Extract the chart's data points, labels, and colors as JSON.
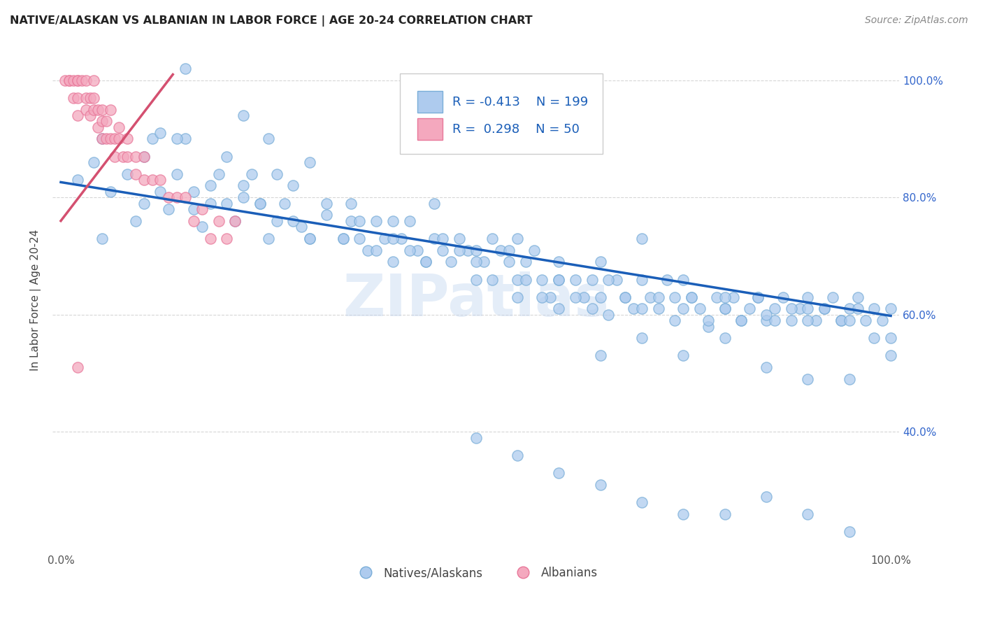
{
  "title": "NATIVE/ALASKAN VS ALBANIAN IN LABOR FORCE | AGE 20-24 CORRELATION CHART",
  "source_text": "Source: ZipAtlas.com",
  "ylabel": "In Labor Force | Age 20-24",
  "xlim": [
    -0.01,
    1.01
  ],
  "ylim": [
    0.195,
    1.055
  ],
  "x_tick_labels_left": "0.0%",
  "x_tick_labels_right": "100.0%",
  "y_tick_labels": [
    "40.0%",
    "60.0%",
    "80.0%",
    "100.0%"
  ],
  "y_ticks": [
    0.4,
    0.6,
    0.8,
    1.0
  ],
  "blue_color": "#aecbee",
  "blue_edge_color": "#7aaed8",
  "pink_color": "#f4a8be",
  "pink_edge_color": "#e8789a",
  "blue_line_color": "#1a5eb8",
  "pink_line_color": "#d45070",
  "legend_blue_label": "Natives/Alaskans",
  "legend_pink_label": "Albanians",
  "r_blue": -0.413,
  "n_blue": 199,
  "r_pink": 0.298,
  "n_pink": 50,
  "watermark": "ZIPatlas",
  "blue_slope": -0.228,
  "blue_intercept": 0.826,
  "pink_slope": 1.85,
  "pink_intercept": 0.76,
  "blue_x": [
    0.02,
    0.04,
    0.05,
    0.06,
    0.08,
    0.09,
    0.1,
    0.11,
    0.12,
    0.13,
    0.14,
    0.15,
    0.16,
    0.17,
    0.18,
    0.19,
    0.2,
    0.21,
    0.22,
    0.23,
    0.24,
    0.25,
    0.26,
    0.27,
    0.28,
    0.29,
    0.3,
    0.32,
    0.34,
    0.35,
    0.36,
    0.37,
    0.38,
    0.39,
    0.4,
    0.41,
    0.42,
    0.43,
    0.44,
    0.45,
    0.46,
    0.47,
    0.48,
    0.49,
    0.5,
    0.51,
    0.52,
    0.53,
    0.54,
    0.55,
    0.56,
    0.57,
    0.58,
    0.59,
    0.6,
    0.62,
    0.63,
    0.64,
    0.65,
    0.66,
    0.67,
    0.68,
    0.69,
    0.7,
    0.71,
    0.72,
    0.73,
    0.74,
    0.75,
    0.76,
    0.77,
    0.78,
    0.79,
    0.8,
    0.81,
    0.82,
    0.83,
    0.84,
    0.85,
    0.86,
    0.87,
    0.88,
    0.89,
    0.9,
    0.91,
    0.92,
    0.93,
    0.94,
    0.95,
    0.96,
    0.97,
    0.98,
    0.99,
    1.0,
    0.1,
    0.12,
    0.14,
    0.16,
    0.18,
    0.2,
    0.22,
    0.24,
    0.26,
    0.28,
    0.3,
    0.32,
    0.34,
    0.36,
    0.38,
    0.4,
    0.42,
    0.44,
    0.46,
    0.48,
    0.5,
    0.52,
    0.54,
    0.56,
    0.58,
    0.6,
    0.62,
    0.64,
    0.66,
    0.68,
    0.7,
    0.72,
    0.74,
    0.76,
    0.78,
    0.8,
    0.82,
    0.84,
    0.86,
    0.88,
    0.9,
    0.92,
    0.94,
    0.96,
    0.98,
    1.0,
    0.15,
    0.22,
    0.25,
    0.3,
    0.35,
    0.4,
    0.45,
    0.5,
    0.55,
    0.6,
    0.65,
    0.7,
    0.75,
    0.8,
    0.85,
    0.9,
    0.95,
    0.05,
    0.55,
    0.6,
    0.65,
    0.7,
    0.75,
    0.8,
    0.85,
    0.9,
    0.95,
    1.0,
    0.5,
    0.55,
    0.6,
    0.65,
    0.7,
    0.75,
    0.8,
    0.85,
    0.9,
    0.95
  ],
  "blue_y": [
    0.83,
    0.86,
    0.9,
    0.81,
    0.84,
    0.76,
    0.87,
    0.9,
    0.81,
    0.78,
    0.84,
    0.9,
    0.78,
    0.75,
    0.82,
    0.84,
    0.79,
    0.76,
    0.8,
    0.84,
    0.79,
    0.73,
    0.76,
    0.79,
    0.82,
    0.75,
    0.73,
    0.77,
    0.73,
    0.76,
    0.73,
    0.71,
    0.76,
    0.73,
    0.69,
    0.73,
    0.76,
    0.71,
    0.69,
    0.73,
    0.71,
    0.69,
    0.73,
    0.71,
    0.66,
    0.69,
    0.73,
    0.71,
    0.69,
    0.66,
    0.69,
    0.71,
    0.66,
    0.63,
    0.69,
    0.66,
    0.63,
    0.66,
    0.63,
    0.6,
    0.66,
    0.63,
    0.61,
    0.66,
    0.63,
    0.61,
    0.66,
    0.63,
    0.61,
    0.63,
    0.61,
    0.58,
    0.63,
    0.61,
    0.63,
    0.59,
    0.61,
    0.63,
    0.59,
    0.61,
    0.63,
    0.59,
    0.61,
    0.63,
    0.59,
    0.61,
    0.63,
    0.59,
    0.61,
    0.63,
    0.59,
    0.61,
    0.59,
    0.61,
    0.79,
    0.91,
    0.9,
    0.81,
    0.79,
    0.87,
    0.82,
    0.79,
    0.84,
    0.76,
    0.73,
    0.79,
    0.73,
    0.76,
    0.71,
    0.73,
    0.71,
    0.69,
    0.73,
    0.71,
    0.69,
    0.66,
    0.71,
    0.66,
    0.63,
    0.66,
    0.63,
    0.61,
    0.66,
    0.63,
    0.61,
    0.63,
    0.59,
    0.63,
    0.59,
    0.61,
    0.59,
    0.63,
    0.59,
    0.61,
    0.59,
    0.61,
    0.59,
    0.61,
    0.56,
    0.56,
    1.02,
    0.94,
    0.9,
    0.86,
    0.79,
    0.76,
    0.79,
    0.71,
    0.73,
    0.66,
    0.69,
    0.73,
    0.66,
    0.63,
    0.6,
    0.61,
    0.59,
    0.73,
    0.63,
    0.61,
    0.53,
    0.56,
    0.53,
    0.56,
    0.51,
    0.49,
    0.49,
    0.53,
    0.39,
    0.36,
    0.33,
    0.31,
    0.28,
    0.26,
    0.26,
    0.29,
    0.26,
    0.23
  ],
  "pink_x": [
    0.005,
    0.01,
    0.01,
    0.015,
    0.015,
    0.02,
    0.02,
    0.02,
    0.02,
    0.025,
    0.03,
    0.03,
    0.03,
    0.035,
    0.035,
    0.04,
    0.04,
    0.04,
    0.045,
    0.045,
    0.05,
    0.05,
    0.05,
    0.055,
    0.055,
    0.06,
    0.06,
    0.065,
    0.065,
    0.07,
    0.07,
    0.075,
    0.08,
    0.08,
    0.09,
    0.09,
    0.1,
    0.1,
    0.11,
    0.12,
    0.13,
    0.14,
    0.15,
    0.16,
    0.17,
    0.18,
    0.19,
    0.2,
    0.21,
    0.02
  ],
  "pink_y": [
    1.0,
    1.0,
    1.0,
    1.0,
    0.97,
    1.0,
    1.0,
    0.97,
    0.94,
    1.0,
    1.0,
    0.97,
    0.95,
    0.97,
    0.94,
    1.0,
    0.97,
    0.95,
    0.95,
    0.92,
    0.95,
    0.93,
    0.9,
    0.93,
    0.9,
    0.95,
    0.9,
    0.9,
    0.87,
    0.92,
    0.9,
    0.87,
    0.9,
    0.87,
    0.87,
    0.84,
    0.87,
    0.83,
    0.83,
    0.83,
    0.8,
    0.8,
    0.8,
    0.76,
    0.78,
    0.73,
    0.76,
    0.73,
    0.76,
    0.51
  ]
}
